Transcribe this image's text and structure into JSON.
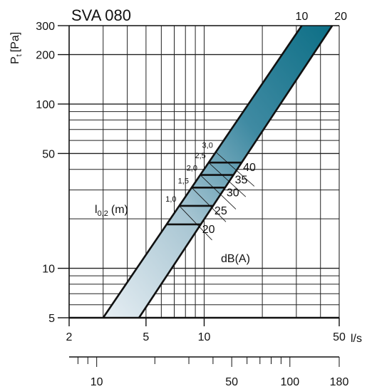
{
  "chart_data": {
    "type": "line",
    "title": "SVA 080",
    "ylabel_main": "P",
    "ylabel_sub": "t",
    "ylabel_unit": "[Pa]",
    "xlabel": "l/s",
    "x_scale": "log",
    "y_scale": "log",
    "xlim": [
      2,
      50
    ],
    "ylim": [
      5,
      300
    ],
    "x_ticks": [
      "2",
      "5",
      "10",
      "50"
    ],
    "y_ticks": [
      "5",
      "10",
      "50",
      "100",
      "200",
      "300"
    ],
    "secondary_axis_ticks": [
      "10",
      "50",
      "100",
      "180"
    ],
    "band": {
      "lower_edge": [
        {
          "x": 3.0,
          "y": 5
        },
        {
          "x": 32,
          "y": 300
        }
      ],
      "upper_edge": [
        {
          "x": 4.6,
          "y": 5
        },
        {
          "x": 46,
          "y": 300
        }
      ],
      "top_labels": [
        "10",
        "20"
      ]
    },
    "throw_label_main": "l",
    "throw_label_sub": "0,2",
    "throw_label_unit": "(m)",
    "throw_values": [
      "1,0",
      "1,5",
      "2,0",
      "2,5",
      "3,0"
    ],
    "noise_label": "dB(A)",
    "noise_levels": [
      {
        "label": "20",
        "p": 18.5
      },
      {
        "label": "25",
        "p": 24
      },
      {
        "label": "30",
        "p": 31
      },
      {
        "label": "35",
        "p": 37
      },
      {
        "label": "40",
        "p": 44
      }
    ]
  }
}
